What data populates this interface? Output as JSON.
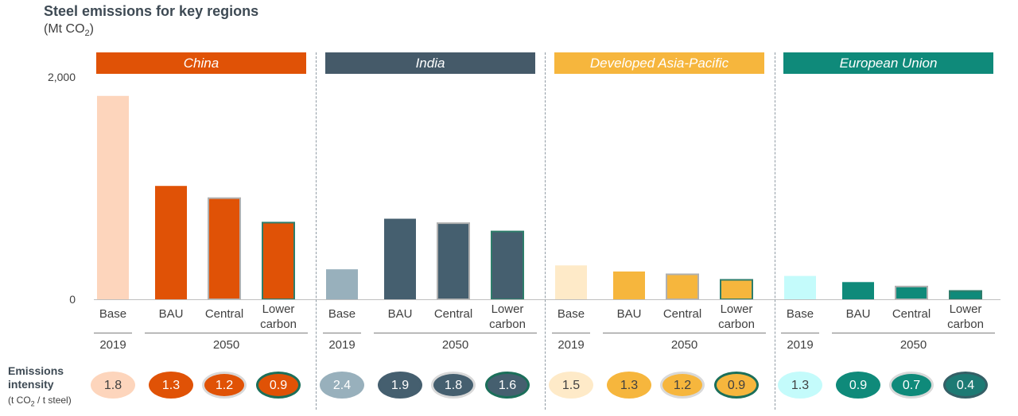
{
  "chart_data": {
    "type": "bar",
    "title": "Steel emissions for key regions",
    "unit_prefix": "(Mt CO",
    "unit_sub": "2",
    "unit_suffix": ")",
    "yticks": [
      "2,000",
      "0"
    ],
    "ylim": [
      0,
      2000
    ],
    "categories": [
      "Base",
      "BAU",
      "Central",
      "Lower carbon"
    ],
    "years": {
      "base": "2019",
      "future": "2050"
    },
    "ei": {
      "label_line1": "Emissions",
      "label_line2": "intensity",
      "unit_prefix": "(t CO",
      "unit_sub": "2",
      "unit_suffix": " / t steel)"
    },
    "regions": [
      {
        "name": "China",
        "header_color": "#e05206",
        "values": [
          1830,
          1020,
          910,
          690
        ],
        "bar_colors": [
          "#fdd5bc",
          "#e05206",
          "#e05206",
          "#e05206"
        ],
        "bar_borders": [
          "none",
          "none",
          "#b0b0b0",
          "#2e7d6b"
        ],
        "intensity": [
          "1.8",
          "1.3",
          "1.2",
          "0.9"
        ],
        "ellipse_fills": [
          "#fdd5bc",
          "#e05206",
          "#e05206",
          "#e05206"
        ],
        "ellipse_borders": [
          "#fdd5bc",
          "#e05206",
          "#d9d9d9",
          "#1b6f5a"
        ],
        "ellipse_text": [
          "#404040",
          "#ffffff",
          "#ffffff",
          "#ffffff"
        ]
      },
      {
        "name": "India",
        "header_color": "#455a69",
        "values": [
          270,
          725,
          685,
          610
        ],
        "bar_colors": [
          "#98b0bc",
          "#455f6f",
          "#455f6f",
          "#455f6f"
        ],
        "bar_borders": [
          "none",
          "none",
          "#b0b0b0",
          "#2e7d6b"
        ],
        "intensity": [
          "2.4",
          "1.9",
          "1.8",
          "1.6"
        ],
        "ellipse_fills": [
          "#98b0bc",
          "#455f6f",
          "#455f6f",
          "#455f6f"
        ],
        "ellipse_borders": [
          "#98b0bc",
          "#455f6f",
          "#d9d9d9",
          "#1b6f5a"
        ],
        "ellipse_text": [
          "#ffffff",
          "#ffffff",
          "#ffffff",
          "#ffffff"
        ]
      },
      {
        "name": "Developed Asia-Pacific",
        "header_color": "#f6b63d",
        "values": [
          305,
          250,
          225,
          175
        ],
        "bar_colors": [
          "#feeac8",
          "#f6b63d",
          "#f6b63d",
          "#f6b63d"
        ],
        "bar_borders": [
          "none",
          "none",
          "#b0b0b0",
          "#2e7d6b"
        ],
        "intensity": [
          "1.5",
          "1.3",
          "1.2",
          "0.9"
        ],
        "ellipse_fills": [
          "#feeac8",
          "#f6b63d",
          "#f6b63d",
          "#f6b63d"
        ],
        "ellipse_borders": [
          "#feeac8",
          "#f6b63d",
          "#d9d9d9",
          "#1b6f5a"
        ],
        "ellipse_text": [
          "#404040",
          "#404040",
          "#404040",
          "#404040"
        ]
      },
      {
        "name": "European Union",
        "header_color": "#0f8a7a",
        "values": [
          210,
          155,
          115,
          75
        ],
        "bar_colors": [
          "#c4fbfb",
          "#0f8a7a",
          "#0f8a7a",
          "#0f8a7a"
        ],
        "bar_borders": [
          "none",
          "none",
          "#b0b0b0",
          "#2e7d6b"
        ],
        "intensity": [
          "1.3",
          "0.9",
          "0.7",
          "0.4"
        ],
        "ellipse_fills": [
          "#c4fbfb",
          "#0f8a7a",
          "#0f8a7a",
          "#1d7a74"
        ],
        "ellipse_borders": [
          "#c4fbfb",
          "#0f8a7a",
          "#d9d9d9",
          "#355f66"
        ],
        "ellipse_text": [
          "#404040",
          "#ffffff",
          "#ffffff",
          "#ffffff"
        ]
      }
    ]
  }
}
